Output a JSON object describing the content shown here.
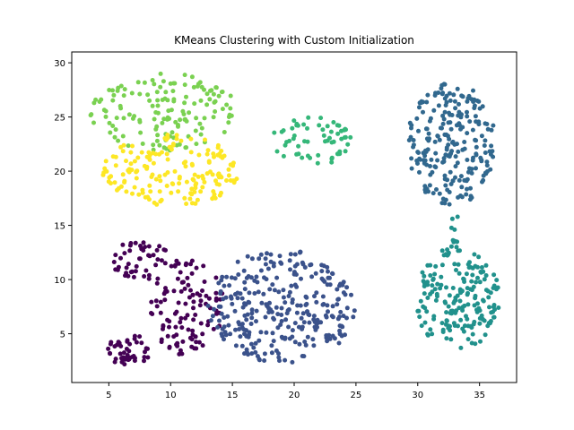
{
  "chart_data": {
    "type": "scatter",
    "title": "KMeans Clustering with Custom Initialization",
    "xlabel": "",
    "ylabel": "",
    "xlim": [
      2.0,
      38.0
    ],
    "ylim": [
      0.5,
      31.0
    ],
    "xticks": [
      5,
      10,
      15,
      20,
      25,
      30,
      35
    ],
    "yticks": [
      5,
      10,
      15,
      20,
      25,
      30
    ],
    "grid": false,
    "legend": "none",
    "clusters": [
      {
        "color": "#440154",
        "regions": [
          {
            "cx": 6.7,
            "cy": 3.5,
            "rx": 1.8,
            "ry": 1.5,
            "n": 45
          },
          {
            "cx": 7.6,
            "cy": 11.8,
            "rx": 2.4,
            "ry": 1.8,
            "n": 45
          },
          {
            "cx": 11.3,
            "cy": 7.5,
            "rx": 3.0,
            "ry": 4.5,
            "n": 110
          }
        ]
      },
      {
        "color": "#3b528b",
        "regions": [
          {
            "cx": 19.0,
            "cy": 7.5,
            "rx": 6.0,
            "ry": 5.3,
            "n": 300
          }
        ]
      },
      {
        "color": "#21918c",
        "regions": [
          {
            "cx": 33.2,
            "cy": 8.3,
            "rx": 3.5,
            "ry": 4.8,
            "n": 190
          },
          {
            "cx": 33.0,
            "cy": 14.8,
            "rx": 0.4,
            "ry": 1.6,
            "n": 8
          }
        ]
      },
      {
        "color": "#31688e",
        "regions": [
          {
            "cx": 32.7,
            "cy": 22.5,
            "rx": 3.6,
            "ry": 5.7,
            "n": 230
          }
        ]
      },
      {
        "color": "#35b779",
        "regions": [
          {
            "cx": 21.5,
            "cy": 22.8,
            "rx": 3.3,
            "ry": 2.3,
            "n": 60
          }
        ]
      },
      {
        "color": "#7ad151",
        "regions": [
          {
            "cx": 9.5,
            "cy": 25.5,
            "rx": 6.0,
            "ry": 3.6,
            "n": 150
          }
        ]
      },
      {
        "color": "#fde725",
        "regions": [
          {
            "cx": 10.0,
            "cy": 20.0,
            "rx": 5.5,
            "ry": 3.4,
            "n": 170
          }
        ]
      }
    ]
  }
}
